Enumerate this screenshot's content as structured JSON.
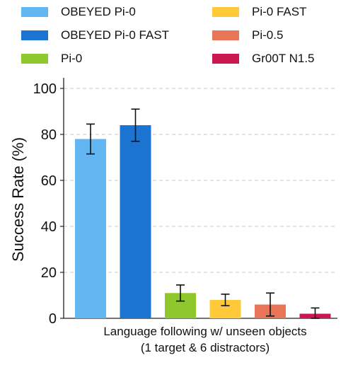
{
  "chart_data": {
    "type": "bar",
    "title": "",
    "xlabel_line1": "Language following w/ unseen objects",
    "xlabel_line2": "(1 target & 6 distractors)",
    "ylabel": "Success Rate (%)",
    "ylim": [
      0,
      100
    ],
    "yticks": [
      "0",
      "20",
      "40",
      "60",
      "80",
      "100"
    ],
    "grid": "horizontal dashed",
    "legend_placement": "top, two columns",
    "series": [
      {
        "name": "OBEYED Pi-0",
        "value": 78,
        "err_low": 71.5,
        "err_high": 84.5,
        "color": "#62b6f2"
      },
      {
        "name": "OBEYED Pi-0 FAST",
        "value": 84,
        "err_low": 77,
        "err_high": 91,
        "color": "#1b74d1"
      },
      {
        "name": "Pi-0",
        "value": 11,
        "err_low": 7.5,
        "err_high": 14.5,
        "color": "#8dc92d"
      },
      {
        "name": "Pi-0 FAST",
        "value": 8,
        "err_low": 5.5,
        "err_high": 10.5,
        "color": "#ffc93a"
      },
      {
        "name": "Pi-0.5",
        "value": 6,
        "err_low": 1,
        "err_high": 11,
        "color": "#e97558"
      },
      {
        "name": "Gr00T N1.5",
        "value": 2,
        "err_low": 0,
        "err_high": 4.5,
        "color": "#cc1850"
      }
    ]
  }
}
